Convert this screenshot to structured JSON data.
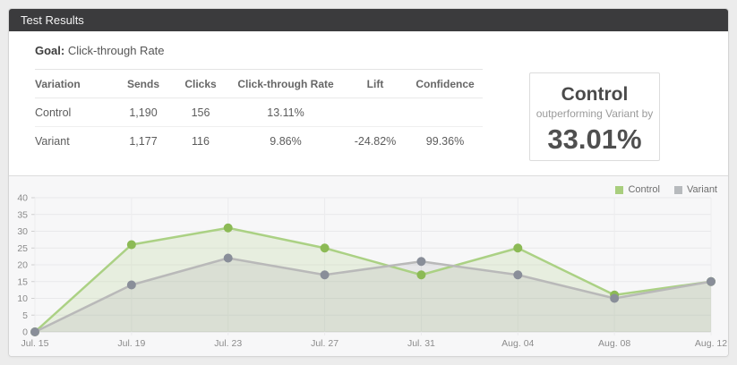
{
  "header": {
    "title": "Test Results"
  },
  "goal": {
    "label": "Goal:",
    "value": "Click-through Rate"
  },
  "table": {
    "columns": [
      "Variation",
      "Sends",
      "Clicks",
      "Click-through Rate",
      "Lift",
      "Confidence"
    ],
    "rows": [
      {
        "variation": "Control",
        "sends": "1,190",
        "clicks": "156",
        "ctr": "13.11%",
        "lift": "",
        "confidence": ""
      },
      {
        "variation": "Variant",
        "sends": "1,177",
        "clicks": "116",
        "ctr": "9.86%",
        "lift": "-24.82%",
        "confidence": "99.36%"
      }
    ]
  },
  "summary_box": {
    "winner": "Control",
    "description": "outperforming Variant by",
    "percent": "33.01%"
  },
  "legend": [
    {
      "label": "Control",
      "color": "#a9ce7e"
    },
    {
      "label": "Variant",
      "color": "#b7babd"
    }
  ],
  "chart_data": {
    "type": "line",
    "x": [
      "Jul. 15",
      "Jul. 19",
      "Jul. 23",
      "Jul. 27",
      "Jul. 31",
      "Aug. 04",
      "Aug. 08",
      "Aug. 12"
    ],
    "series": [
      {
        "name": "Control",
        "values": [
          0,
          26,
          31,
          25,
          17,
          25,
          11,
          15
        ],
        "line_color": "#abd184",
        "dot_color": "#8cba55",
        "fill_color": "rgba(168,205,124,0.20)"
      },
      {
        "name": "Variant",
        "values": [
          0,
          14,
          22,
          17,
          21,
          17,
          10,
          15
        ],
        "line_color": "#b9b9b9",
        "dot_color": "#898e99",
        "fill_color": "rgba(150,152,158,0.16)"
      }
    ],
    "ylim": [
      0,
      40
    ],
    "ytick_step": 5,
    "grid": true,
    "legend_position": "top-right",
    "title": "",
    "xlabel": "",
    "ylabel": ""
  },
  "chart_style": {
    "h_gridline": "#e9e9eb",
    "baseline": "#dbdbdd",
    "v_gridline": "#ececee",
    "tick": "#cfcfcf",
    "axis_text": "#8b8b8b"
  }
}
